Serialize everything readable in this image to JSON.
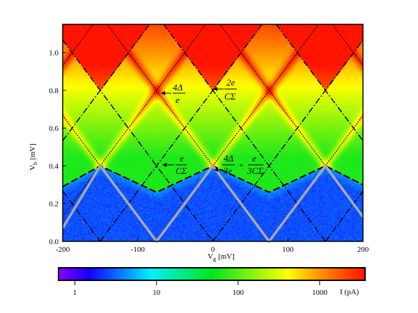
{
  "chart_data": {
    "type": "heatmap",
    "xlabel": "V",
    "xlabel_sub": "g",
    "xlabel_unit": "[mV]",
    "ylabel": "V",
    "ylabel_sub": "b",
    "ylabel_unit": "[mV]",
    "xlim": [
      -200,
      200
    ],
    "ylim": [
      0.0,
      1.15
    ],
    "xticks": [
      -200,
      -100,
      0,
      100,
      200
    ],
    "xtick_labels": [
      "-200",
      "-100",
      "0",
      "100",
      "200"
    ],
    "yticks": [
      0.0,
      0.2,
      0.4,
      0.6,
      0.8,
      1.0
    ],
    "ytick_labels": [
      "0.0",
      "0.2",
      "0.4",
      "0.6",
      "0.8",
      "1.0"
    ],
    "diamond_period_mV": 150,
    "diamond_vertex_Vb": 0.4,
    "blue_boundary": {
      "x": [
        -200,
        -150,
        -75,
        0,
        75,
        150,
        200
      ],
      "y": [
        0.29,
        0.4,
        0.26,
        0.4,
        0.26,
        0.4,
        0.3
      ]
    },
    "colorbar": {
      "label": "I (pA)",
      "scale": "log",
      "range_pA": [
        0.63,
        3600
      ],
      "ticks": [
        1,
        10,
        100,
        1000
      ],
      "tick_labels": [
        "1",
        "10",
        "100",
        "1000"
      ],
      "colormap": "rainbow (purple-blue-cyan-green-yellow-red)"
    },
    "annotations": [
      {
        "text_num": "4Δ",
        "text_den": "e",
        "at": [
          -75,
          0.8
        ]
      },
      {
        "text_num": "2e",
        "text_den": "CΣ",
        "at": [
          0,
          0.82
        ]
      },
      {
        "text_num": "e",
        "text_den": "CΣ",
        "at": [
          -75,
          0.41
        ]
      },
      {
        "text_num": "4Δ",
        "text_den": "3e",
        "plus": "+",
        "text_num2": "e",
        "text_den2": "3CΣ",
        "at": [
          0,
          0.4
        ]
      }
    ]
  }
}
